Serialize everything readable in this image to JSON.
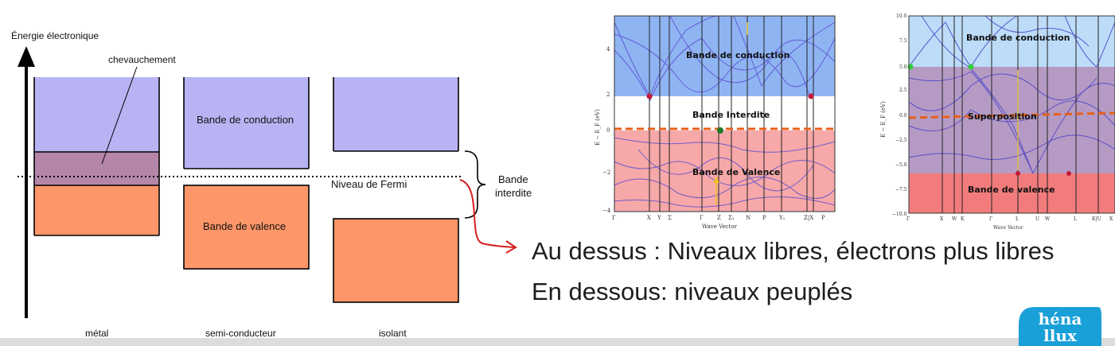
{
  "diagram": {
    "axis_label": "Énergie électronique",
    "overlap_label": "chevauchement",
    "conduction_label": "Bande de conduction",
    "valence_label": "Bande de valence",
    "fermi_label": "Niveau de Fermi",
    "gap_label_line1": "Bande",
    "gap_label_line2": "interdite",
    "materials": [
      "métal",
      "semi-conducteur",
      "isolant"
    ],
    "colors": {
      "conduction": "#b8b4f4",
      "valence": "#fd9668",
      "overlap": "#b586a8",
      "arrow": "#d62020"
    }
  },
  "plot_left": {
    "ylabel": "E − E_F (eV)",
    "xlabel": "Wave Vector",
    "y_ticks": [
      "4",
      "2",
      "0",
      "−2",
      "−4"
    ],
    "k_points": [
      "Γ",
      "X",
      "Y",
      "Σ",
      "Γ",
      "Z",
      "Σ₁",
      "N",
      "P",
      "Y₁",
      "Z|X",
      "P"
    ],
    "conduction_label": "Bande de conduction",
    "gap_label": "Bande Interdite",
    "valence_label": "Bande de Valence"
  },
  "plot_right": {
    "ylabel": "E − E_F (eV)",
    "xlabel": "Wave Vector",
    "y_ticks": [
      "10.0",
      "7.5",
      "5.0",
      "2.5",
      "0.0",
      "−2.5",
      "−5.0",
      "−7.5",
      "−10.0"
    ],
    "k_points": [
      "Γ",
      "X",
      "W",
      "K",
      "Γ",
      "L",
      "U",
      "W",
      "L",
      "K|U",
      "X"
    ],
    "conduction_label": "Bande de conduction",
    "overlap_label": "Superposition",
    "valence_label": "Bande de valence"
  },
  "text": {
    "line1": "Au dessus : Niveaux libres, électrons plus libres",
    "line2": "En dessous: niveaux peuplés"
  },
  "logo": {
    "line1": "héna",
    "line2": "llux"
  }
}
